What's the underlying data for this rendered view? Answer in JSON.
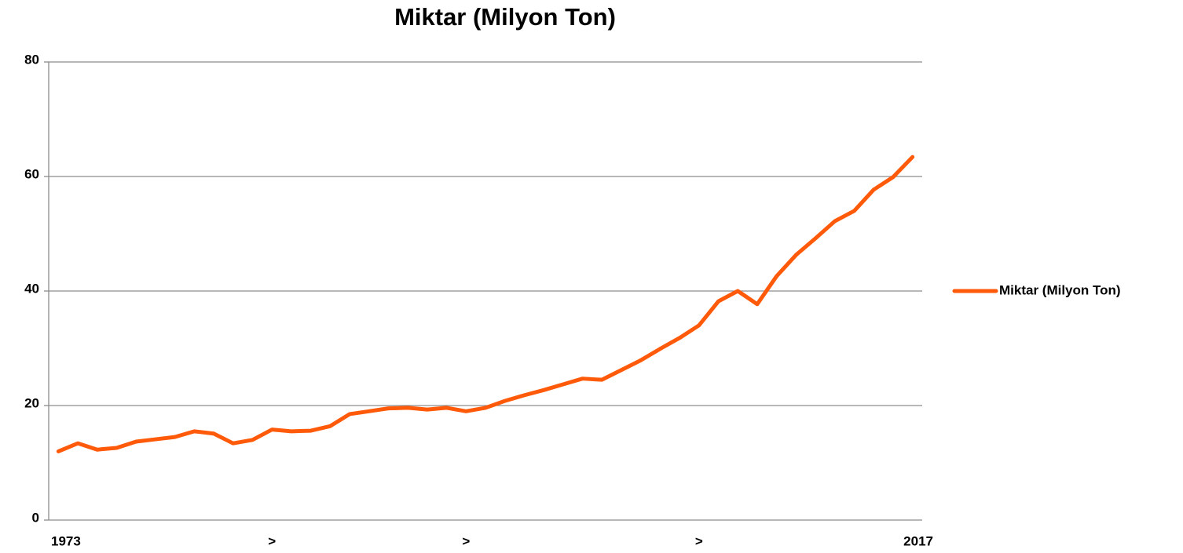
{
  "chart_data": {
    "type": "line",
    "title": "Miktar (Milyon Ton)",
    "categories": [
      "1973",
      null,
      null,
      null,
      null,
      null,
      null,
      null,
      null,
      null,
      null,
      ">",
      null,
      null,
      null,
      null,
      null,
      null,
      null,
      null,
      null,
      ">",
      null,
      null,
      null,
      null,
      null,
      null,
      null,
      null,
      null,
      null,
      null,
      ">",
      null,
      null,
      null,
      null,
      null,
      null,
      null,
      null,
      null,
      null,
      "2017"
    ],
    "series": [
      {
        "name": "Miktar (Milyon Ton)",
        "color": "#ff5a0a",
        "values": [
          12.0,
          13.4,
          12.3,
          12.6,
          13.7,
          14.1,
          14.5,
          15.5,
          15.1,
          13.4,
          14.0,
          15.8,
          15.5,
          15.6,
          16.4,
          18.5,
          19.0,
          19.5,
          19.6,
          19.3,
          19.6,
          19.0,
          19.6,
          20.8,
          21.8,
          22.7,
          23.7,
          24.7,
          24.5,
          26.2,
          27.9,
          29.9,
          31.8,
          34.0,
          38.2,
          40.0,
          37.7,
          42.6,
          46.3,
          49.2,
          52.2,
          54.0,
          57.7,
          59.9,
          63.4
        ]
      }
    ],
    "ylim": [
      0,
      80
    ],
    "yticks": [
      0,
      20,
      40,
      60,
      80
    ],
    "grid": true,
    "legend": "right"
  }
}
